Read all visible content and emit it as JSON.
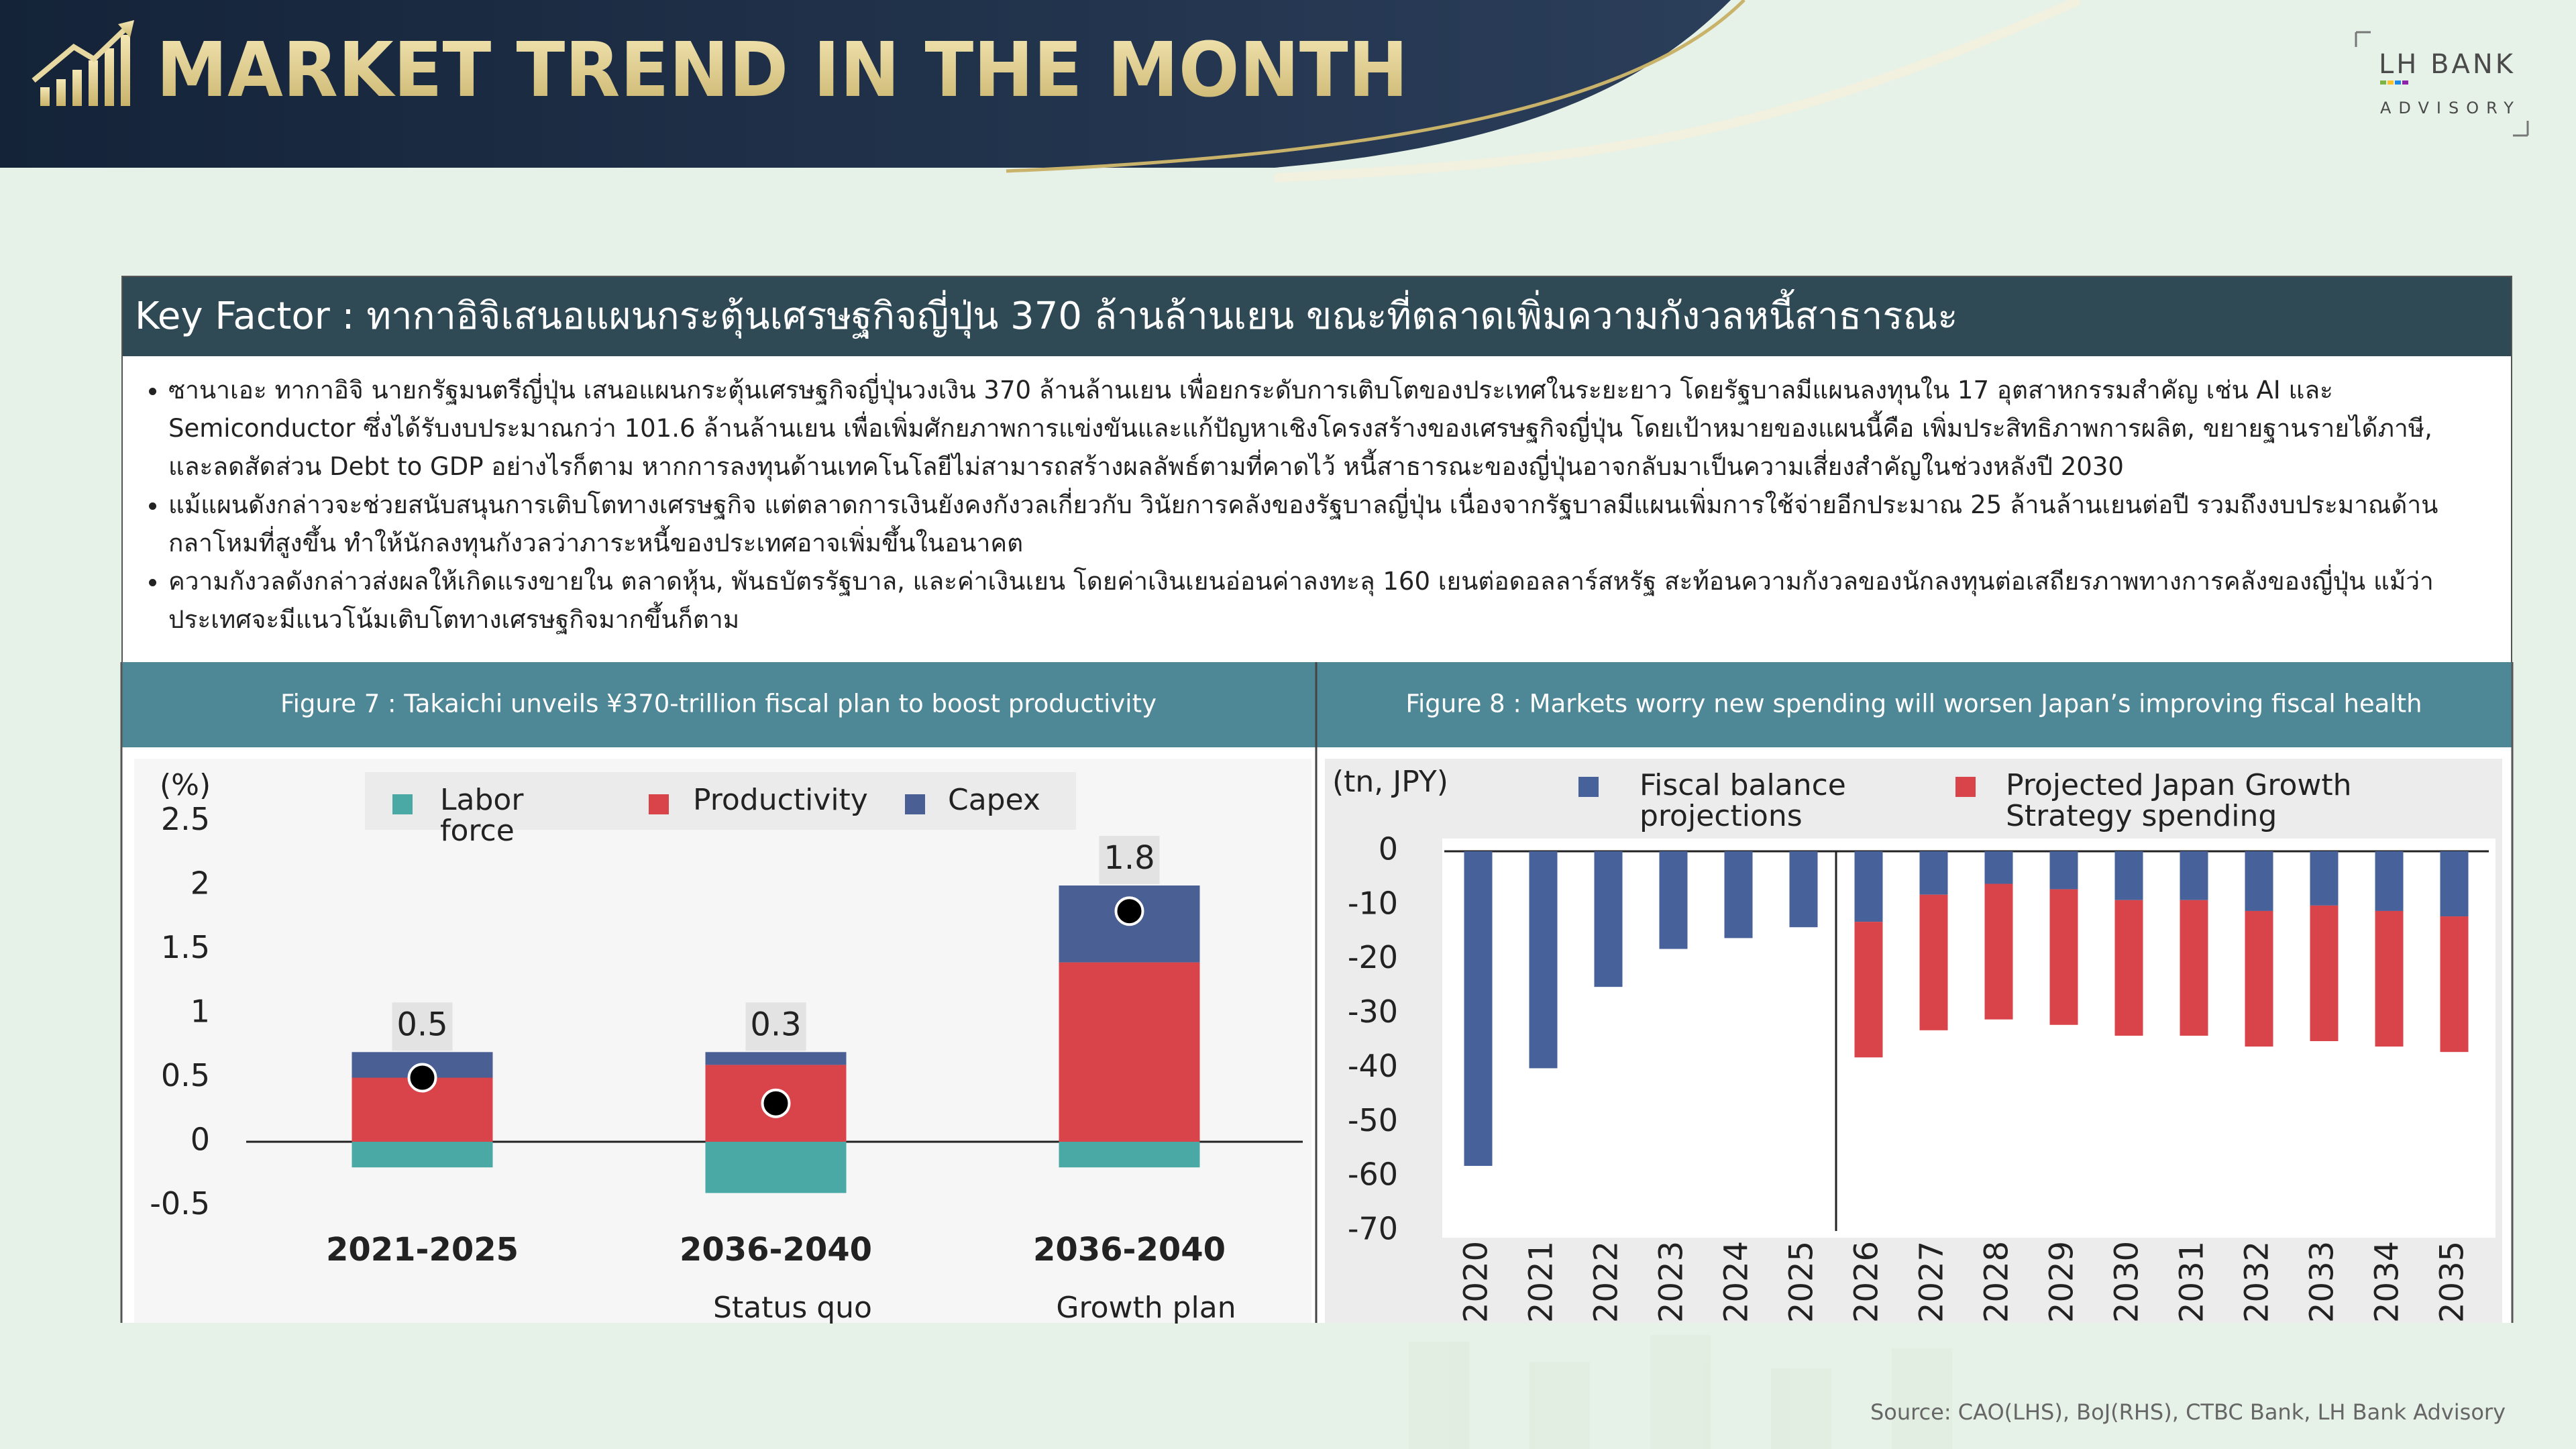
{
  "header": {
    "title": "MARKET TREND IN THE MONTH",
    "logo_name": "LH BANK",
    "logo_sub": "ADVISORY"
  },
  "key_factor": {
    "title": "Key Factor : ทากาอิจิเสนอแผนกระตุ้นเศรษฐกิจญี่ปุ่น 370 ล้านล้านเยน ขณะที่ตลาดเพิ่มความกังวลหนี้สาธารณะ",
    "bullets": [
      "ซานาเอะ ทากาอิจิ นายกรัฐมนตรีญี่ปุ่น เสนอแผนกระตุ้นเศรษฐกิจญี่ปุ่นวงเงิน 370 ล้านล้านเยน เพื่อยกระดับการเติบโตของประเทศในระยะยาว โดยรัฐบาลมีแผนลงทุนใน 17 อุตสาหกรรมสำคัญ เช่น AI และ Semiconductor ซึ่งได้รับงบประมาณกว่า 101.6 ล้านล้านเยน เพื่อเพิ่มศักยภาพการแข่งขันและแก้ปัญหาเชิงโครงสร้างของเศรษฐกิจญี่ปุ่น โดยเป้าหมายของแผนนี้คือ เพิ่มประสิทธิภาพการผลิต, ขยายฐานรายได้ภาษี, และลดสัดส่วน Debt to GDP อย่างไรก็ตาม หากการลงทุนด้านเทคโนโลยีไม่สามารถสร้างผลลัพธ์ตามที่คาดไว้ หนี้สาธารณะของญี่ปุ่นอาจกลับมาเป็นความเสี่ยงสำคัญในช่วงหลังปี 2030",
      "แม้แผนดังกล่าวจะช่วยสนับสนุนการเติบโตทางเศรษฐกิจ แต่ตลาดการเงินยังคงกังวลเกี่ยวกับ วินัยการคลังของรัฐบาลญี่ปุ่น เนื่องจากรัฐบาลมีแผนเพิ่มการใช้จ่ายอีกประมาณ 25 ล้านล้านเยนต่อปี รวมถึงงบประมาณด้านกลาโหมที่สูงขึ้น ทำให้นักลงทุนกังวลว่าภาระหนี้ของประเทศอาจเพิ่มขึ้นในอนาคต",
      "ความกังวลดังกล่าวส่งผลให้เกิดแรงขายใน ตลาดหุ้น, พันธบัตรรัฐบาล, และค่าเงินเยน โดยค่าเงินเยนอ่อนค่าลงทะลุ 160 เยนต่อดอลลาร์สหรัฐ สะท้อนความกังวลของนักลงทุนต่อเสถียรภาพทางการคลังของญี่ปุ่น แม้ว่าประเทศจะมีแนวโน้มเติบโตทางเศรษฐกิจมากขึ้นก็ตาม"
    ]
  },
  "chart_data": [
    {
      "type": "stacked_bar",
      "title": "Figure 7 :  Takaichi unveils ¥370-trillion fiscal plan to boost productivity",
      "y_label": "(%)",
      "categories": [
        "2021-2025",
        "2036-2040",
        "2036-2040"
      ],
      "category_sublabels": [
        null,
        "Status quo",
        "Growth plan"
      ],
      "series": [
        {
          "name": "Labor force",
          "color": "#4aa9a4",
          "values": [
            -0.2,
            -0.4,
            -0.2
          ]
        },
        {
          "name": "Productivity",
          "color": "#d9444a",
          "values": [
            0.5,
            0.6,
            1.4
          ]
        },
        {
          "name": "Capex",
          "color": "#4a5f94",
          "values": [
            0.2,
            0.1,
            0.6
          ]
        }
      ],
      "totals": {
        "color": "#000000",
        "values": [
          0.5,
          0.3,
          1.8
        ]
      },
      "ylim": [
        -0.5,
        2.5
      ],
      "yticks": [
        -0.5,
        0,
        0.5,
        1,
        1.5,
        2,
        2.5
      ]
    },
    {
      "type": "stacked_bar",
      "title": "Figure 8 : Markets worry new spending will worsen Japan’s improving fiscal health",
      "y_label": "(tn, JPY)",
      "categories": [
        "2020",
        "2021",
        "2022",
        "2023",
        "2024",
        "2025",
        "2026",
        "2027",
        "2028",
        "2029",
        "2030",
        "2031",
        "2032",
        "2033",
        "2034",
        "2035"
      ],
      "series": [
        {
          "name": "Fiscal balance projections",
          "color": "#47619a",
          "values": [
            -58,
            -40,
            -25,
            -18,
            -16,
            -14,
            -13,
            -8,
            -6,
            -7,
            -9,
            -9,
            -11,
            -10,
            -11,
            -12
          ]
        },
        {
          "name": "Projected Japan Growth Strategy spending",
          "color": "#d9444a",
          "values": [
            null,
            null,
            null,
            null,
            null,
            null,
            -25,
            -25,
            -25,
            -25,
            -25,
            -25,
            -25,
            -25,
            -25,
            -25
          ]
        }
      ],
      "ylim": [
        -70,
        0
      ],
      "yticks": [
        0,
        -10,
        -20,
        -30,
        -40,
        -50,
        -60,
        -70
      ]
    }
  ],
  "source": "Source: CAO(LHS), BoJ(RHS), CTBC Bank, LH Bank Advisory"
}
